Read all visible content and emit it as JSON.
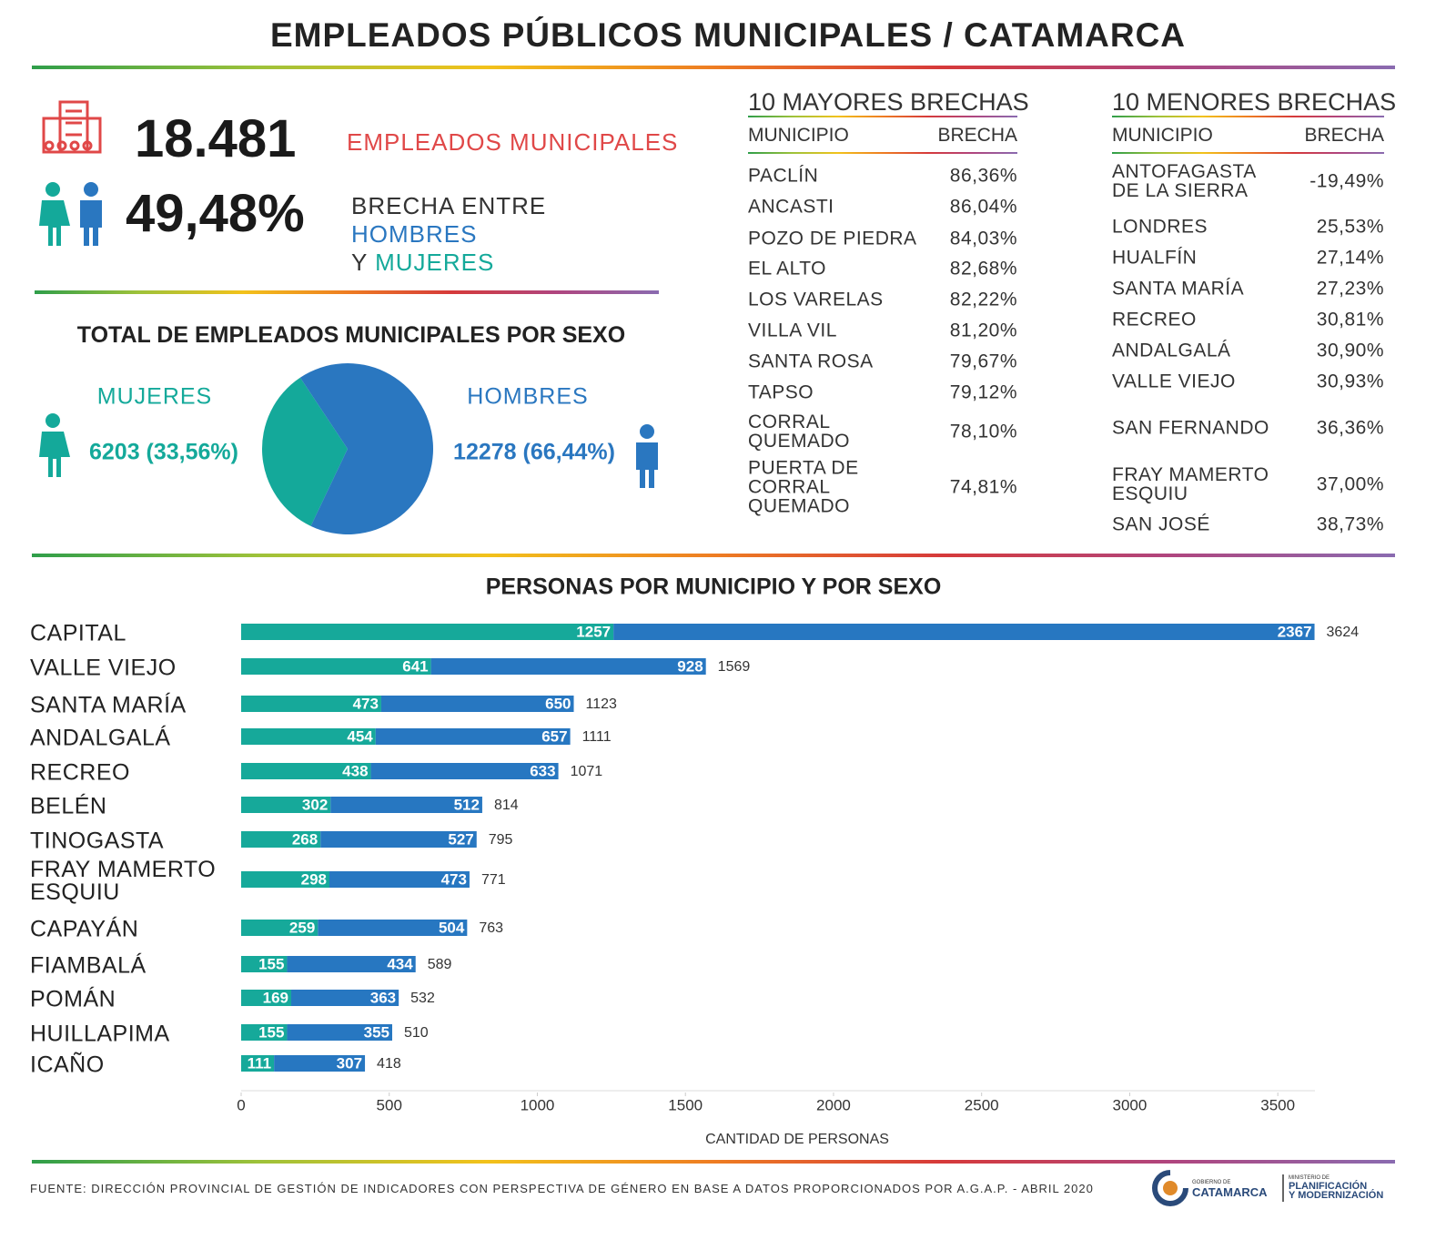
{
  "header": {
    "title": "EMPLEADOS PÚBLICOS MUNICIPALES / CATAMARCA"
  },
  "stats": {
    "employees": {
      "value": "18.481",
      "label": "EMPLEADOS MUNICIPALES"
    },
    "gap": {
      "value": "49,48%",
      "label_parts": [
        "BRECHA ENTRE",
        "HOMBRES",
        "Y",
        "MUJERES"
      ]
    }
  },
  "tables": [
    {
      "title": "10 MAYORES BRECHAS",
      "columns": [
        "MUNICIPIO",
        "BRECHA"
      ],
      "rows": [
        [
          "PACLÍN",
          "86,36%"
        ],
        [
          "ANCASTI",
          "86,04%"
        ],
        [
          "POZO DE PIEDRA",
          "84,03%"
        ],
        [
          "EL ALTO",
          "82,68%"
        ],
        [
          "LOS VARELAS",
          "82,22%"
        ],
        [
          "VILLA VIL",
          "81,20%"
        ],
        [
          "SANTA ROSA",
          "79,67%"
        ],
        [
          "TAPSO",
          "79,12%"
        ],
        [
          "CORRAL\nQUEMADO",
          "78,10%"
        ],
        [
          "PUERTA DE\nCORRAL\nQUEMADO",
          "74,81%"
        ]
      ]
    },
    {
      "title": "10 MENORES BRECHAS",
      "columns": [
        "MUNICIPIO",
        "BRECHA"
      ],
      "rows": [
        [
          "ANTOFAGASTA\nDE LA SIERRA",
          "-19,49%"
        ],
        [
          "LONDRES",
          "25,53%"
        ],
        [
          "HUALFÍN",
          "27,14%"
        ],
        [
          "SANTA MARÍA",
          "27,23%"
        ],
        [
          "RECREO",
          "30,81%"
        ],
        [
          "ANDALGALÁ",
          "30,90%"
        ],
        [
          "VALLE VIEJO",
          "30,93%"
        ],
        [
          "SAN FERNANDO",
          "36,36%"
        ],
        [
          "FRAY MAMERTO\nESQUIU",
          "37,00%"
        ],
        [
          "SAN JOSÉ",
          "38,73%"
        ]
      ]
    }
  ],
  "chart_data": [
    {
      "type": "pie",
      "title": "TOTAL DE EMPLEADOS MUNICIPALES POR SEXO",
      "categories": [
        "MUJERES",
        "HOMBRES"
      ],
      "values": [
        6203,
        12278
      ],
      "value_labels": [
        "6203 (33,56%)",
        "12278 (66,44%)"
      ],
      "colors": [
        "#14a99a",
        "#2a77c0"
      ]
    },
    {
      "type": "bar",
      "orientation": "horizontal",
      "stacked": true,
      "title": "PERSONAS POR MUNICIPIO Y POR SEXO",
      "xlabel": "CANTIDAD DE PERSONAS",
      "categories": [
        "CAPITAL",
        "VALLE VIEJO",
        "SANTA MARÍA",
        "ANDALGALÁ",
        "RECREO",
        "BELÉN",
        "TINOGASTA",
        "FRAY MAMERTO\nESQUIU",
        "CAPAYÁN",
        "FIAMBALÁ",
        "POMÁN",
        "HUILLAPIMA",
        "ICAÑO"
      ],
      "series": [
        {
          "color": "#16a99a",
          "values": [
            1257,
            641,
            473,
            454,
            438,
            302,
            268,
            298,
            259,
            155,
            169,
            155,
            111
          ]
        },
        {
          "color": "#2777c1",
          "values": [
            2367,
            928,
            650,
            657,
            633,
            512,
            527,
            473,
            504,
            434,
            363,
            355,
            307
          ]
        }
      ],
      "totals": [
        3624,
        1569,
        1123,
        1111,
        1071,
        814,
        795,
        771,
        763,
        589,
        532,
        510,
        418
      ],
      "xlim": [
        0,
        3650
      ],
      "xticks": [
        0,
        500,
        1000,
        1500,
        2000,
        2500,
        3000,
        3500
      ],
      "grid": false
    }
  ],
  "footer": {
    "source": "FUENTE: DIRECCIÓN PROVINCIAL DE GESTIÓN DE INDICADORES CON PERSPECTIVA DE GÉNERO EN BASE A DATOS PROPORCIONADOS POR A.G.A.P. - ABRIL 2020",
    "logo": [
      "GOBIERNO DE",
      "CATAMARCA",
      "MINISTERIO DE",
      "PLANIFICACIÓN",
      "Y MODERNIZACIÓN"
    ]
  }
}
